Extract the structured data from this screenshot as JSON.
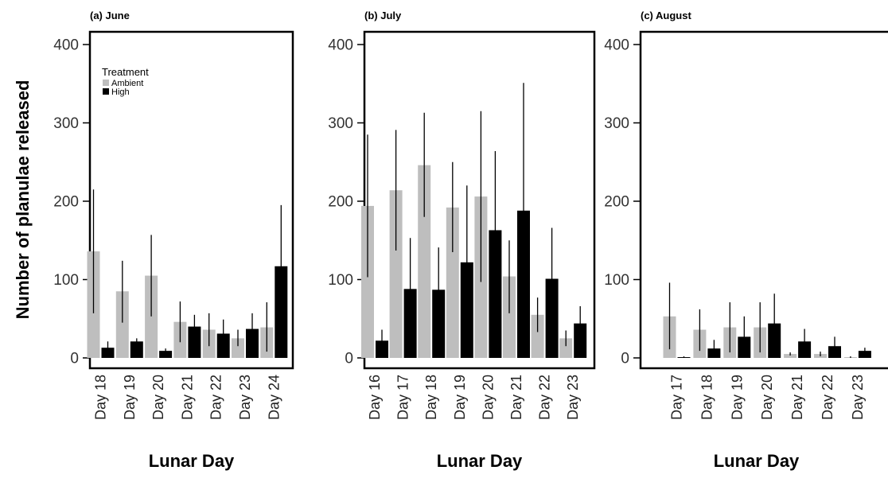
{
  "ylabel": "Number of planulae released",
  "legend": {
    "title": "Treatment",
    "labels": [
      "Ambient",
      "High"
    ]
  },
  "colors": {
    "Ambient": "#bebebe",
    "High": "#000000"
  },
  "chart_data": [
    {
      "type": "bar",
      "title": "(a) June",
      "xlabel": "Lunar Day",
      "ylim": [
        0,
        400
      ],
      "yticks": [
        0,
        100,
        200,
        300,
        400
      ],
      "legend": "top-left",
      "categories": [
        "Day 18",
        "Day 19",
        "Day 20",
        "Day 21",
        "Day 22",
        "Day 23",
        "Day 24"
      ],
      "series": [
        {
          "name": "Ambient",
          "values": [
            136,
            85,
            105,
            46,
            36,
            25,
            39
          ],
          "err_low": [
            57,
            45,
            53,
            20,
            15,
            15,
            8
          ],
          "err_high": [
            215,
            124,
            157,
            72,
            57,
            36,
            71
          ]
        },
        {
          "name": "High",
          "values": [
            13,
            21,
            9,
            40,
            31,
            37,
            117
          ],
          "err_low": [
            5,
            17,
            6,
            26,
            14,
            17,
            39
          ],
          "err_high": [
            21,
            25,
            12,
            55,
            49,
            57,
            195
          ]
        }
      ]
    },
    {
      "type": "bar",
      "title": "(b) July",
      "xlabel": "Lunar Day",
      "ylim": [
        0,
        400
      ],
      "yticks": [
        0,
        100,
        200,
        300,
        400
      ],
      "categories": [
        "Day 16",
        "Day 17",
        "Day 18",
        "Day 19",
        "Day 20",
        "Day 21",
        "Day 22",
        "Day 23"
      ],
      "series": [
        {
          "name": "Ambient",
          "values": [
            194,
            214,
            246,
            192,
            206,
            104,
            55,
            25
          ],
          "err_low": [
            103,
            137,
            180,
            135,
            97,
            57,
            33,
            15
          ],
          "err_high": [
            285,
            291,
            313,
            250,
            315,
            150,
            77,
            35
          ]
        },
        {
          "name": "High",
          "values": [
            22,
            88,
            87,
            122,
            163,
            188,
            101,
            44
          ],
          "err_low": [
            8,
            23,
            33,
            23,
            62,
            25,
            37,
            22
          ],
          "err_high": [
            36,
            153,
            141,
            220,
            264,
            351,
            166,
            66
          ]
        }
      ]
    },
    {
      "type": "bar",
      "title": "(c) August",
      "xlabel": "Lunar Day",
      "ylim": [
        0,
        400
      ],
      "yticks": [
        0,
        100,
        200,
        300,
        400
      ],
      "categories": [
        "Day 17",
        "Day 18",
        "Day 19",
        "Day 20",
        "Day 21",
        "Day 22",
        "Day 23"
      ],
      "series": [
        {
          "name": "Ambient",
          "values": [
            53,
            36,
            39,
            39,
            5,
            5,
            1
          ],
          "err_low": [
            11,
            9,
            7,
            7,
            3,
            2,
            0
          ],
          "err_high": [
            96,
            62,
            71,
            71,
            7,
            8,
            2
          ]
        },
        {
          "name": "High",
          "values": [
            1,
            12,
            27,
            44,
            21,
            15,
            9
          ],
          "err_low": [
            0,
            2,
            3,
            6,
            5,
            5,
            5
          ],
          "err_high": [
            2,
            23,
            53,
            82,
            37,
            27,
            13
          ]
        }
      ]
    }
  ]
}
